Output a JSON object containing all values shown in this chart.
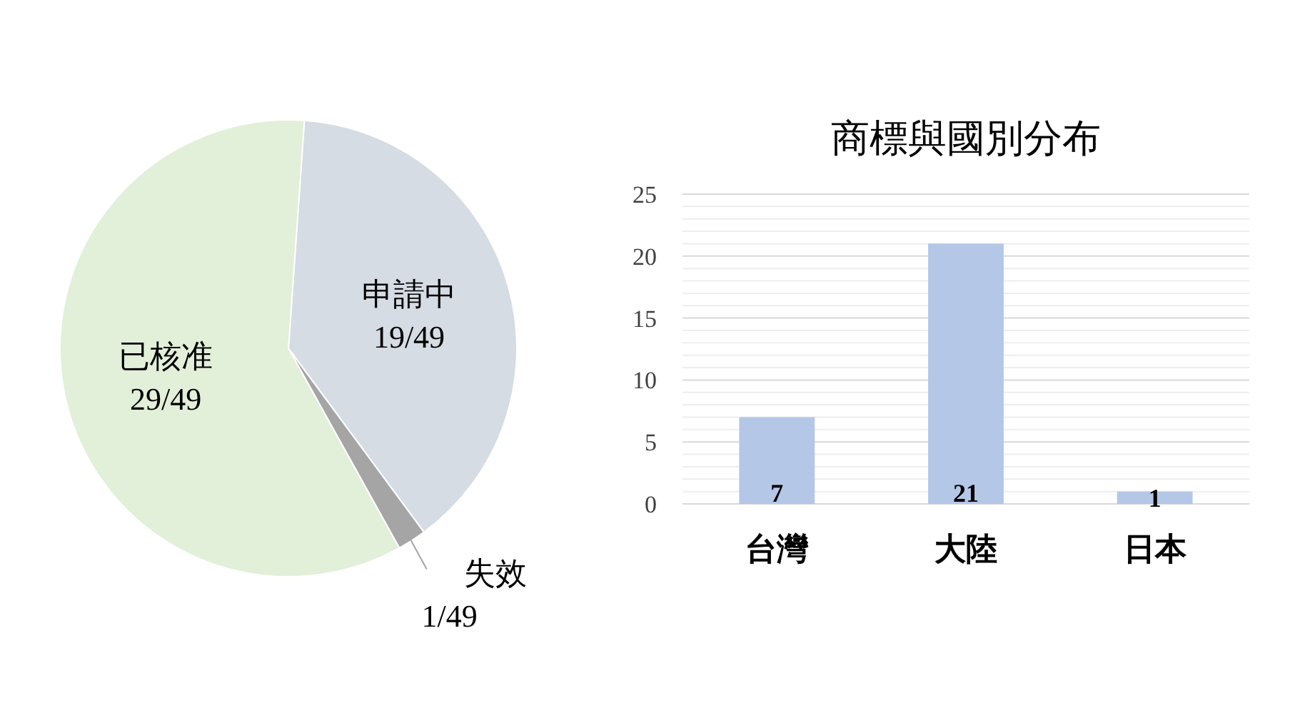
{
  "chart_data": [
    {
      "type": "pie",
      "categories": [
        "申請中",
        "失效",
        "已核准"
      ],
      "values": [
        19,
        1,
        29
      ],
      "value_labels": [
        "19/49",
        "1/49",
        "29/49"
      ],
      "colors": [
        "#d6dce4",
        "#a5a5a5",
        "#e2efd9"
      ]
    },
    {
      "type": "bar",
      "title": "商標與國別分布",
      "categories": [
        "台灣",
        "大陸",
        "日本"
      ],
      "values": [
        7,
        21,
        1
      ],
      "color": "#b4c7e7",
      "ylim": [
        0,
        25
      ],
      "yticks": [
        0,
        {
          "value": 1,
          "label": null
        },
        {
          "value": 2,
          "label": null
        },
        {
          "value": 3,
          "label": null
        },
        {
          "value": 4,
          "label": null
        },
        5,
        {
          "value": 6,
          "label": null
        },
        {
          "value": 7,
          "label": null
        },
        {
          "value": 8,
          "label": null
        },
        {
          "value": 9,
          "label": null
        },
        10,
        {
          "value": 11,
          "label": null
        },
        {
          "value": 12,
          "label": null
        },
        {
          "value": 13,
          "label": null
        },
        {
          "value": 14,
          "label": null
        },
        15,
        {
          "value": 16,
          "label": null
        },
        {
          "value": 17,
          "label": null
        },
        {
          "value": 18,
          "label": null
        },
        {
          "value": 19,
          "label": null
        },
        20,
        {
          "value": 21,
          "label": null
        },
        {
          "value": 22,
          "label": null
        },
        {
          "value": 23,
          "label": null
        },
        {
          "value": 24,
          "label": null
        },
        25
      ],
      "grid": true,
      "data_labels": true
    }
  ]
}
